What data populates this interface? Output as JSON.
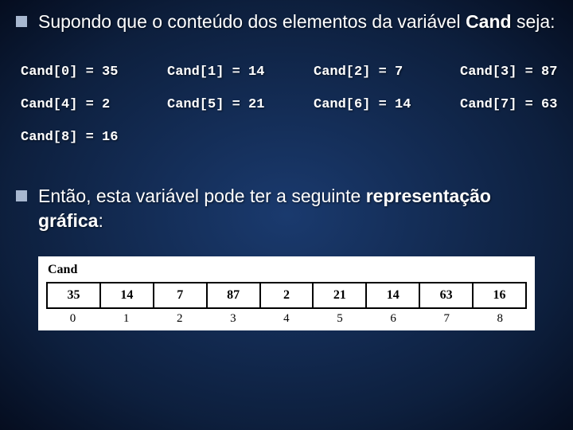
{
  "slide": {
    "bullet1_prefix": "Supondo que o conteúdo dos elementos da variável ",
    "bullet1_bold": "Cand",
    "bullet1_suffix": " seja:",
    "bullet2_prefix": "Então, esta variável pode ter a seguinte ",
    "bullet2_bold": "representação gráfica",
    "bullet2_suffix": ":"
  },
  "assignments": [
    [
      {
        "lhs": "Cand[0]",
        "rhs": "35"
      },
      {
        "lhs": "Cand[1]",
        "rhs": "14"
      },
      {
        "lhs": "Cand[2]",
        "rhs": "7"
      },
      {
        "lhs": "Cand[3]",
        "rhs": "87"
      }
    ],
    [
      {
        "lhs": "Cand[4]",
        "rhs": "2"
      },
      {
        "lhs": "Cand[5]",
        "rhs": "21"
      },
      {
        "lhs": "Cand[6]",
        "rhs": "14"
      },
      {
        "lhs": "Cand[7]",
        "rhs": "63"
      }
    ],
    [
      {
        "lhs": "Cand[8]",
        "rhs": "16"
      }
    ]
  ],
  "array": {
    "label": "Cand",
    "values": [
      "35",
      "14",
      "7",
      "87",
      "2",
      "21",
      "14",
      "63",
      "16"
    ],
    "indices": [
      "0",
      "1",
      "2",
      "3",
      "4",
      "5",
      "6",
      "7",
      "8"
    ]
  },
  "colors": {
    "bg_center": "#1a3a6e",
    "bg_edge": "#050d1f",
    "bullet_fill": "#a8b8d0",
    "text": "#ffffff",
    "graphic_bg": "#ffffff",
    "graphic_border": "#000000",
    "graphic_text": "#000000"
  },
  "typography": {
    "body_font": "Arial",
    "body_size_pt": 17,
    "code_font": "Courier New",
    "code_size_pt": 13,
    "table_font": "Times New Roman",
    "table_size_pt": 12
  }
}
